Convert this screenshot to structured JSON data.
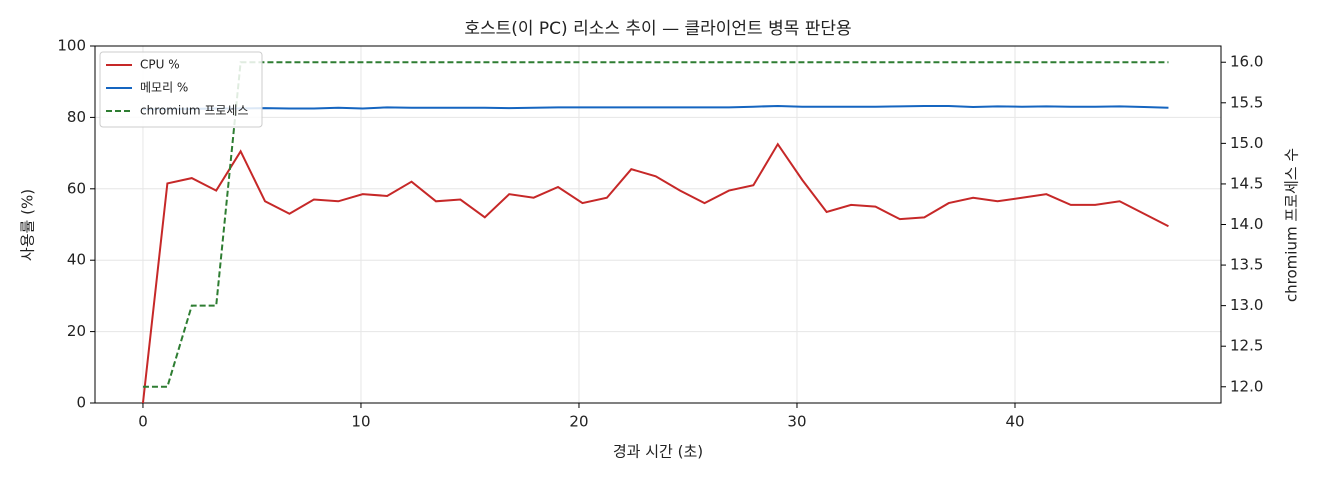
{
  "chart_data": {
    "type": "line",
    "title": "호스트(이 PC) 리소스 추이 — 클라이언트 병목 판단용",
    "x_label": "경과 시간 (초)",
    "y_label": "사용률 (%)",
    "y2_label": "chromium 프로세스 수",
    "x": [
      0,
      1.12,
      2.24,
      3.36,
      4.48,
      5.6,
      6.72,
      7.84,
      8.96,
      10.08,
      11.2,
      12.32,
      13.44,
      14.56,
      15.68,
      16.8,
      17.92,
      19.04,
      20.16,
      21.28,
      22.4,
      23.52,
      24.64,
      25.76,
      26.88,
      28.0,
      29.12,
      30.24,
      31.36,
      32.48,
      33.6,
      34.72,
      35.84,
      36.96,
      38.08,
      39.2,
      40.32,
      41.44,
      42.56,
      43.68,
      44.8,
      45.92,
      47.04
    ],
    "series": [
      {
        "name": "CPU %",
        "color": "#c62828",
        "axis": "y",
        "linestyle": "solid",
        "values": [
          0,
          61.5,
          63,
          59.5,
          70.5,
          56.5,
          53,
          57,
          56.5,
          58.5,
          58,
          62,
          56.5,
          57,
          52,
          58.5,
          57.5,
          60.5,
          56,
          57.5,
          65.5,
          63.5,
          59.5,
          56,
          59.5,
          61,
          72.5,
          62.5,
          53.5,
          55.5,
          55,
          51.5,
          52,
          56,
          57.5,
          56.5,
          57.5,
          58.5,
          55.5,
          55.5,
          56.5,
          53,
          49.5
        ]
      },
      {
        "name": "메모리 %",
        "color": "#1565c0",
        "axis": "y",
        "linestyle": "solid",
        "values": [
          82.3,
          82.4,
          82.4,
          82.5,
          82.5,
          82.6,
          82.5,
          82.5,
          82.7,
          82.5,
          82.8,
          82.7,
          82.7,
          82.7,
          82.7,
          82.6,
          82.7,
          82.8,
          82.8,
          82.8,
          82.8,
          82.8,
          82.8,
          82.8,
          82.8,
          83.0,
          83.2,
          83.0,
          83.0,
          83.0,
          83.0,
          83.1,
          83.2,
          83.2,
          82.9,
          83.1,
          83.0,
          83.1,
          83.0,
          83.0,
          83.1,
          82.9,
          82.7
        ]
      },
      {
        "name": "chromium 프로세스",
        "color": "#2e7d32",
        "axis": "y2",
        "linestyle": "dashed",
        "values": [
          12,
          12,
          13,
          13,
          16,
          16,
          16,
          16,
          16,
          16,
          16,
          16,
          16,
          16,
          16,
          16,
          16,
          16,
          16,
          16,
          16,
          16,
          16,
          16,
          16,
          16,
          16,
          16,
          16,
          16,
          16,
          16,
          16,
          16,
          16,
          16,
          16,
          16,
          16,
          16,
          16,
          16,
          16
        ]
      }
    ],
    "xlim": [
      -2.2,
      49.45
    ],
    "xticks": [
      0,
      10,
      20,
      30,
      40
    ],
    "ylim": [
      0,
      100
    ],
    "yticks": [
      0,
      20,
      40,
      60,
      80,
      100
    ],
    "y2lim": [
      11.8,
      16.2
    ],
    "y2ticks": [
      {
        "value": 12,
        "label": "12.0"
      },
      12.5,
      {
        "value": 13,
        "label": "13.0"
      },
      13.5,
      {
        "value": 14,
        "label": "14.0"
      },
      14.5,
      {
        "value": 15,
        "label": "15.0"
      },
      15.5,
      {
        "value": 16,
        "label": "16.0"
      }
    ],
    "grid": true,
    "legend": "upper left"
  }
}
